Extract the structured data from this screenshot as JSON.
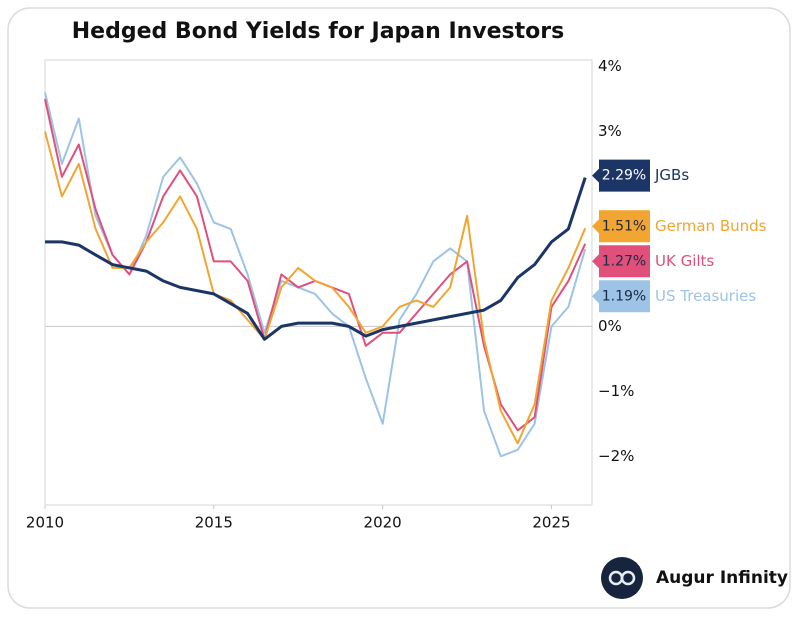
{
  "chart_data": {
    "type": "line",
    "title": "Hedged Bond Yields for Japan Investors",
    "x": [
      2010,
      2010.5,
      2011,
      2011.5,
      2012,
      2012.5,
      2013,
      2013.5,
      2014,
      2014.5,
      2015,
      2015.5,
      2016,
      2016.5,
      2017,
      2017.5,
      2018,
      2018.5,
      2019,
      2019.5,
      2020,
      2020.5,
      2021,
      2021.5,
      2022,
      2022.5,
      2023,
      2023.5,
      2024,
      2024.5,
      2025,
      2025.5,
      2026
    ],
    "series": [
      {
        "name": "JGBs",
        "color": "#1b3566",
        "values": [
          1.3,
          1.3,
          1.25,
          1.1,
          0.95,
          0.9,
          0.85,
          0.7,
          0.6,
          0.55,
          0.5,
          0.35,
          0.2,
          -0.2,
          0.0,
          0.05,
          0.05,
          0.05,
          0.0,
          -0.15,
          -0.05,
          0.0,
          0.05,
          0.1,
          0.15,
          0.2,
          0.25,
          0.4,
          0.75,
          0.95,
          1.3,
          1.5,
          2.29
        ],
        "value_labels": [
          null,
          null,
          null,
          null,
          null,
          null,
          null,
          null,
          null,
          null,
          null,
          null,
          null,
          null,
          null,
          null,
          null,
          null,
          null,
          null,
          null,
          null,
          null,
          null,
          null,
          null,
          null,
          null,
          null,
          null,
          null,
          null,
          "2.29%"
        ]
      },
      {
        "name": "German Bunds",
        "color": "#f2a530",
        "values": [
          3.0,
          2.0,
          2.5,
          1.5,
          0.9,
          0.9,
          1.3,
          1.6,
          2.0,
          1.5,
          0.5,
          0.4,
          0.1,
          -0.2,
          0.6,
          0.9,
          0.7,
          0.6,
          0.3,
          -0.1,
          0.0,
          0.3,
          0.4,
          0.3,
          0.6,
          1.7,
          -0.2,
          -1.3,
          -1.8,
          -1.2,
          0.4,
          0.9,
          1.51
        ],
        "value_labels": [
          null,
          null,
          null,
          null,
          null,
          null,
          null,
          null,
          null,
          null,
          null,
          null,
          null,
          null,
          null,
          null,
          null,
          null,
          null,
          null,
          null,
          null,
          null,
          null,
          null,
          null,
          null,
          null,
          null,
          null,
          null,
          null,
          "1.51%"
        ]
      },
      {
        "name": "UK Gilts",
        "color": "#e0507a",
        "values": [
          3.5,
          2.3,
          2.8,
          1.8,
          1.1,
          0.8,
          1.3,
          2.0,
          2.4,
          2.0,
          1.0,
          1.0,
          0.7,
          -0.2,
          0.8,
          0.6,
          0.7,
          0.6,
          0.5,
          -0.3,
          -0.1,
          -0.1,
          0.2,
          0.5,
          0.8,
          1.0,
          -0.3,
          -1.2,
          -1.6,
          -1.4,
          0.3,
          0.7,
          1.27
        ],
        "value_labels": [
          null,
          null,
          null,
          null,
          null,
          null,
          null,
          null,
          null,
          null,
          null,
          null,
          null,
          null,
          null,
          null,
          null,
          null,
          null,
          null,
          null,
          null,
          null,
          null,
          null,
          null,
          null,
          null,
          null,
          null,
          null,
          null,
          "1.27%"
        ]
      },
      {
        "name": "US Treasuries",
        "color": "#9dc3e6",
        "values": [
          3.6,
          2.5,
          3.2,
          1.7,
          1.1,
          0.8,
          1.4,
          2.3,
          2.6,
          2.2,
          1.6,
          1.5,
          0.8,
          -0.1,
          0.7,
          0.6,
          0.5,
          0.2,
          0.0,
          -0.8,
          -1.5,
          0.1,
          0.5,
          1.0,
          1.2,
          1.0,
          -1.3,
          -2.0,
          -1.9,
          -1.5,
          0.0,
          0.3,
          1.19
        ],
        "value_labels": [
          null,
          null,
          null,
          null,
          null,
          null,
          null,
          null,
          null,
          null,
          null,
          null,
          null,
          null,
          null,
          null,
          null,
          null,
          null,
          null,
          null,
          null,
          null,
          null,
          null,
          null,
          null,
          null,
          null,
          null,
          null,
          null,
          "1.19%"
        ]
      }
    ],
    "xlim": [
      2010,
      2026.2
    ],
    "xticks": [
      2010,
      2015,
      2020,
      2025
    ],
    "ylim": [
      -2.75,
      4.1
    ],
    "yticks": [
      {
        "value": 4,
        "label": "4%"
      },
      {
        "value": 3,
        "label": "3%"
      },
      {
        "value": 0,
        "label": "0%"
      },
      {
        "value": -1,
        "label": "−1%"
      },
      {
        "value": -2,
        "label": "−2%"
      }
    ],
    "grid": false,
    "zero_line": true
  },
  "brand": "Augur Infinity"
}
